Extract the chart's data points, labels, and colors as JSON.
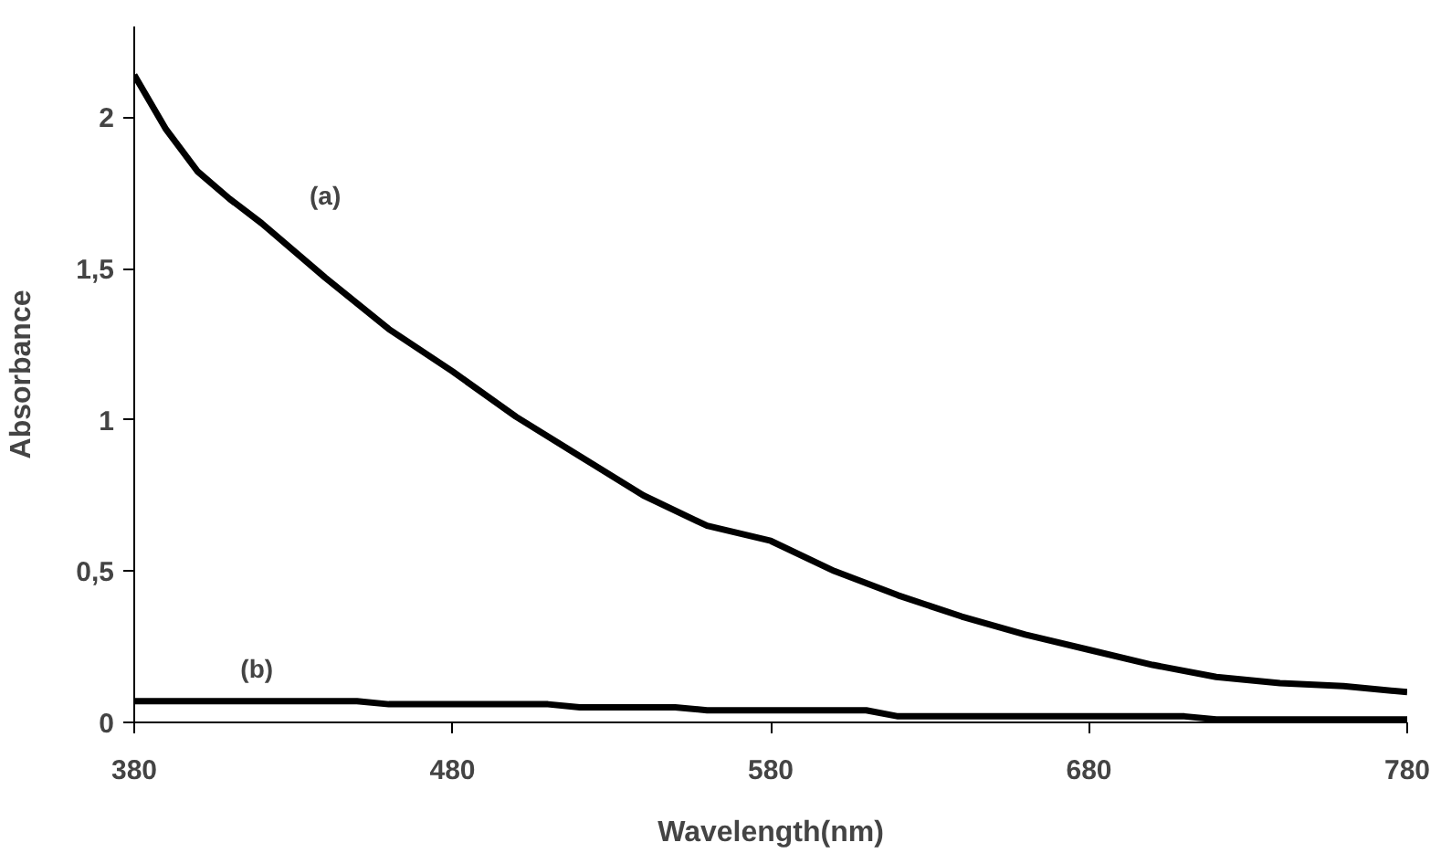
{
  "chart_data": {
    "type": "line",
    "xlabel": "Wavelength(nm)",
    "ylabel": "Absorbance",
    "xlim": [
      380,
      780
    ],
    "xticks": [
      380,
      480,
      580,
      680,
      780
    ],
    "ylim": [
      0,
      2.3
    ],
    "yticks": [
      0,
      {
        "value": 0.5,
        "label": "0,5"
      },
      1,
      {
        "value": 1.5,
        "label": "1,5"
      },
      2
    ],
    "grid": false,
    "legend": false,
    "marker": "none",
    "line_style": "solid",
    "series": [
      {
        "name": "(a)",
        "color": "#000000",
        "x": [
          380,
          390,
          400,
          410,
          420,
          440,
          460,
          480,
          500,
          520,
          540,
          560,
          580,
          600,
          620,
          640,
          660,
          680,
          700,
          720,
          740,
          760,
          780
        ],
        "values": [
          2.14,
          1.96,
          1.82,
          1.73,
          1.65,
          1.47,
          1.3,
          1.16,
          1.01,
          0.88,
          0.75,
          0.65,
          0.6,
          0.5,
          0.42,
          0.35,
          0.29,
          0.24,
          0.19,
          0.15,
          0.13,
          0.12,
          0.1
        ]
      },
      {
        "name": "(b)",
        "color": "#000000",
        "x": [
          380,
          390,
          400,
          410,
          420,
          430,
          440,
          450,
          460,
          470,
          480,
          490,
          500,
          510,
          520,
          530,
          540,
          550,
          560,
          570,
          580,
          590,
          600,
          610,
          620,
          630,
          640,
          650,
          660,
          670,
          680,
          690,
          700,
          710,
          720,
          730,
          740,
          750,
          760,
          770,
          780
        ],
        "values": [
          0.07,
          0.07,
          0.07,
          0.07,
          0.07,
          0.07,
          0.07,
          0.07,
          0.06,
          0.06,
          0.06,
          0.06,
          0.06,
          0.06,
          0.05,
          0.05,
          0.05,
          0.05,
          0.04,
          0.04,
          0.04,
          0.04,
          0.04,
          0.04,
          0.02,
          0.02,
          0.02,
          0.02,
          0.02,
          0.02,
          0.02,
          0.02,
          0.02,
          0.02,
          0.01,
          0.01,
          0.01,
          0.01,
          0.01,
          0.01,
          0.01
        ]
      }
    ]
  }
}
